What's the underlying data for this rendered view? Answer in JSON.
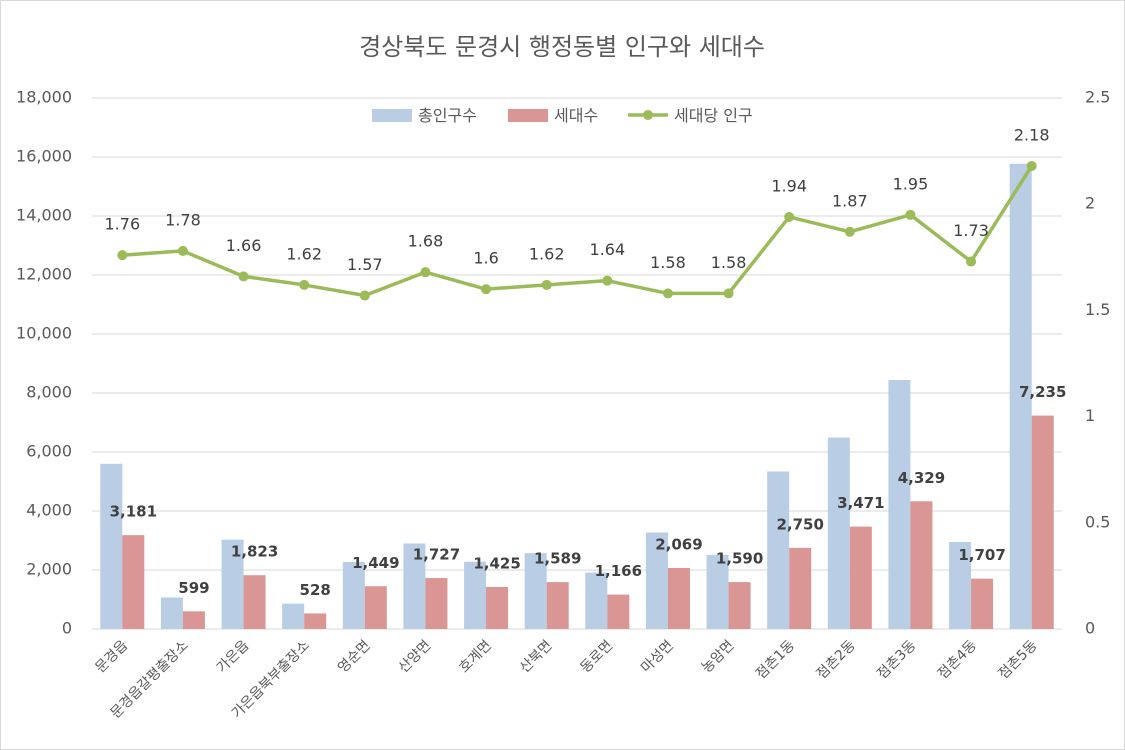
{
  "chart_data": {
    "type": "bar",
    "title": "경상북도 문경시 행정동별 인구와 세대수",
    "categories": [
      "문경읍",
      "문경읍갈평출장소",
      "가은읍",
      "가은읍북부출장소",
      "영순면",
      "산양면",
      "호계면",
      "산북면",
      "동로면",
      "마성면",
      "농암면",
      "점촌1동",
      "점촌2동",
      "점촌3동",
      "점촌4동",
      "점촌5동"
    ],
    "series": [
      {
        "name": "총인구수",
        "type": "bar",
        "axis": "left",
        "color": "#b9cde5",
        "data_labels": false,
        "values": [
          5600,
          1070,
          3030,
          860,
          2270,
          2900,
          2280,
          2570,
          1910,
          3270,
          2510,
          5340,
          6490,
          8440,
          2950,
          15770
        ]
      },
      {
        "name": "세대수",
        "type": "bar",
        "axis": "left",
        "color": "#d99694",
        "data_labels": true,
        "values": [
          3181,
          599,
          1823,
          528,
          1449,
          1727,
          1425,
          1589,
          1166,
          2069,
          1590,
          2750,
          3471,
          4329,
          1707,
          7235
        ]
      },
      {
        "name": "세대당 인구",
        "type": "line",
        "axis": "right",
        "color": "#9bbb59",
        "data_labels": true,
        "values": [
          1.76,
          1.78,
          1.66,
          1.62,
          1.57,
          1.68,
          1.6,
          1.62,
          1.64,
          1.58,
          1.58,
          1.94,
          1.87,
          1.95,
          1.73,
          2.18
        ]
      }
    ],
    "ylim": [
      0,
      18000
    ],
    "yticks": [
      0,
      2000,
      4000,
      6000,
      8000,
      10000,
      12000,
      14000,
      16000,
      18000
    ],
    "y2lim": [
      0,
      2.5
    ],
    "y2ticks": [
      0,
      0.5,
      1,
      1.5,
      2,
      2.5
    ],
    "xlabel": "",
    "ylabel": "",
    "grid": true,
    "legend_position": "top"
  }
}
